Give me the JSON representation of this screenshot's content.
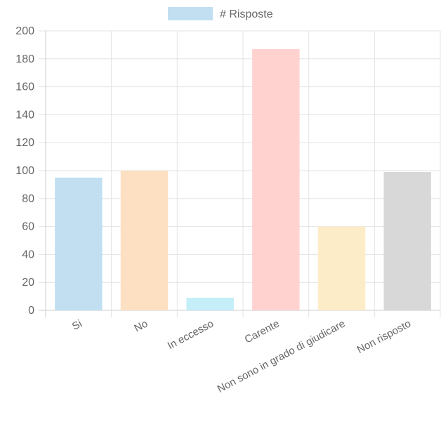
{
  "chart_data": {
    "type": "bar",
    "categories": [
      "Si",
      "No",
      "In eccesso",
      "Carente",
      "Non sono in grado di giudicare",
      "Non risposto"
    ],
    "series": [
      {
        "name": "# Risposte",
        "values": [
          95,
          100,
          9,
          187,
          60,
          99
        ]
      }
    ],
    "ylim": [
      0,
      200
    ],
    "yticks": [
      0,
      20,
      40,
      60,
      80,
      100,
      120,
      140,
      160,
      180,
      200
    ],
    "grid": true,
    "legend": "top-center",
    "colors": {
      "fill": [
        "#c1dff1",
        "#fde0c1",
        "#c4eef8",
        "#ffd2d0",
        "#fdecc8",
        "#d8d8d8"
      ],
      "legend_swatch": "#c1dff1",
      "grid": "#e3e3e3",
      "axis": "#cccccc",
      "text": "#666666"
    }
  }
}
